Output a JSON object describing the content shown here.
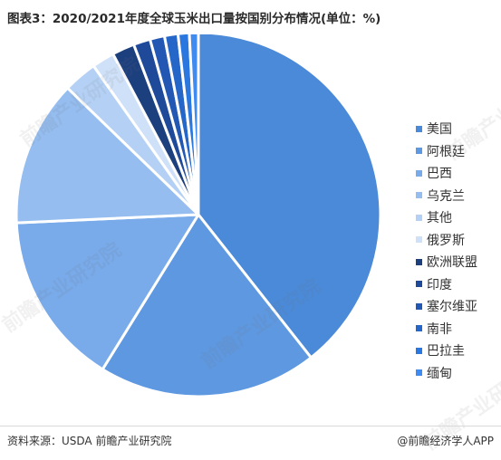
{
  "title": "图表3：2020/2021年度全球玉米出口量按国别分布情况(单位：%)",
  "footer": {
    "source": "资料来源：USDA 前瞻产业研究院",
    "brand": "@前瞻经济学人APP"
  },
  "watermark": "前瞻产业研究院",
  "chart_data": {
    "type": "pie",
    "title": "图表3：2020/2021年度全球玉米出口量按国别分布情况(单位：%)",
    "unit": "%",
    "legend_position": "right",
    "start_angle_deg": 0,
    "direction": "clockwise",
    "slices": [
      {
        "label": "美国",
        "value": 39.5,
        "color": "#4a8ad8"
      },
      {
        "label": "阿根廷",
        "value": 19.5,
        "color": "#5e98e0"
      },
      {
        "label": "巴西",
        "value": 15.5,
        "color": "#79aaea"
      },
      {
        "label": "乌克兰",
        "value": 13.0,
        "color": "#95bdf0"
      },
      {
        "label": "其他",
        "value": 3.0,
        "color": "#b4d1f5"
      },
      {
        "label": "俄罗斯",
        "value": 2.0,
        "color": "#cfe1f9"
      },
      {
        "label": "欧洲联盟",
        "value": 2.0,
        "color": "#1c3f7e"
      },
      {
        "label": "印度",
        "value": 1.5,
        "color": "#1f4a99"
      },
      {
        "label": "塞尔维亚",
        "value": 1.3,
        "color": "#2258b4"
      },
      {
        "label": "南非",
        "value": 1.2,
        "color": "#2566c9"
      },
      {
        "label": "巴拉圭",
        "value": 1.0,
        "color": "#2a78df"
      },
      {
        "label": "缅甸",
        "value": 0.8,
        "color": "#3f8bf0"
      }
    ]
  }
}
